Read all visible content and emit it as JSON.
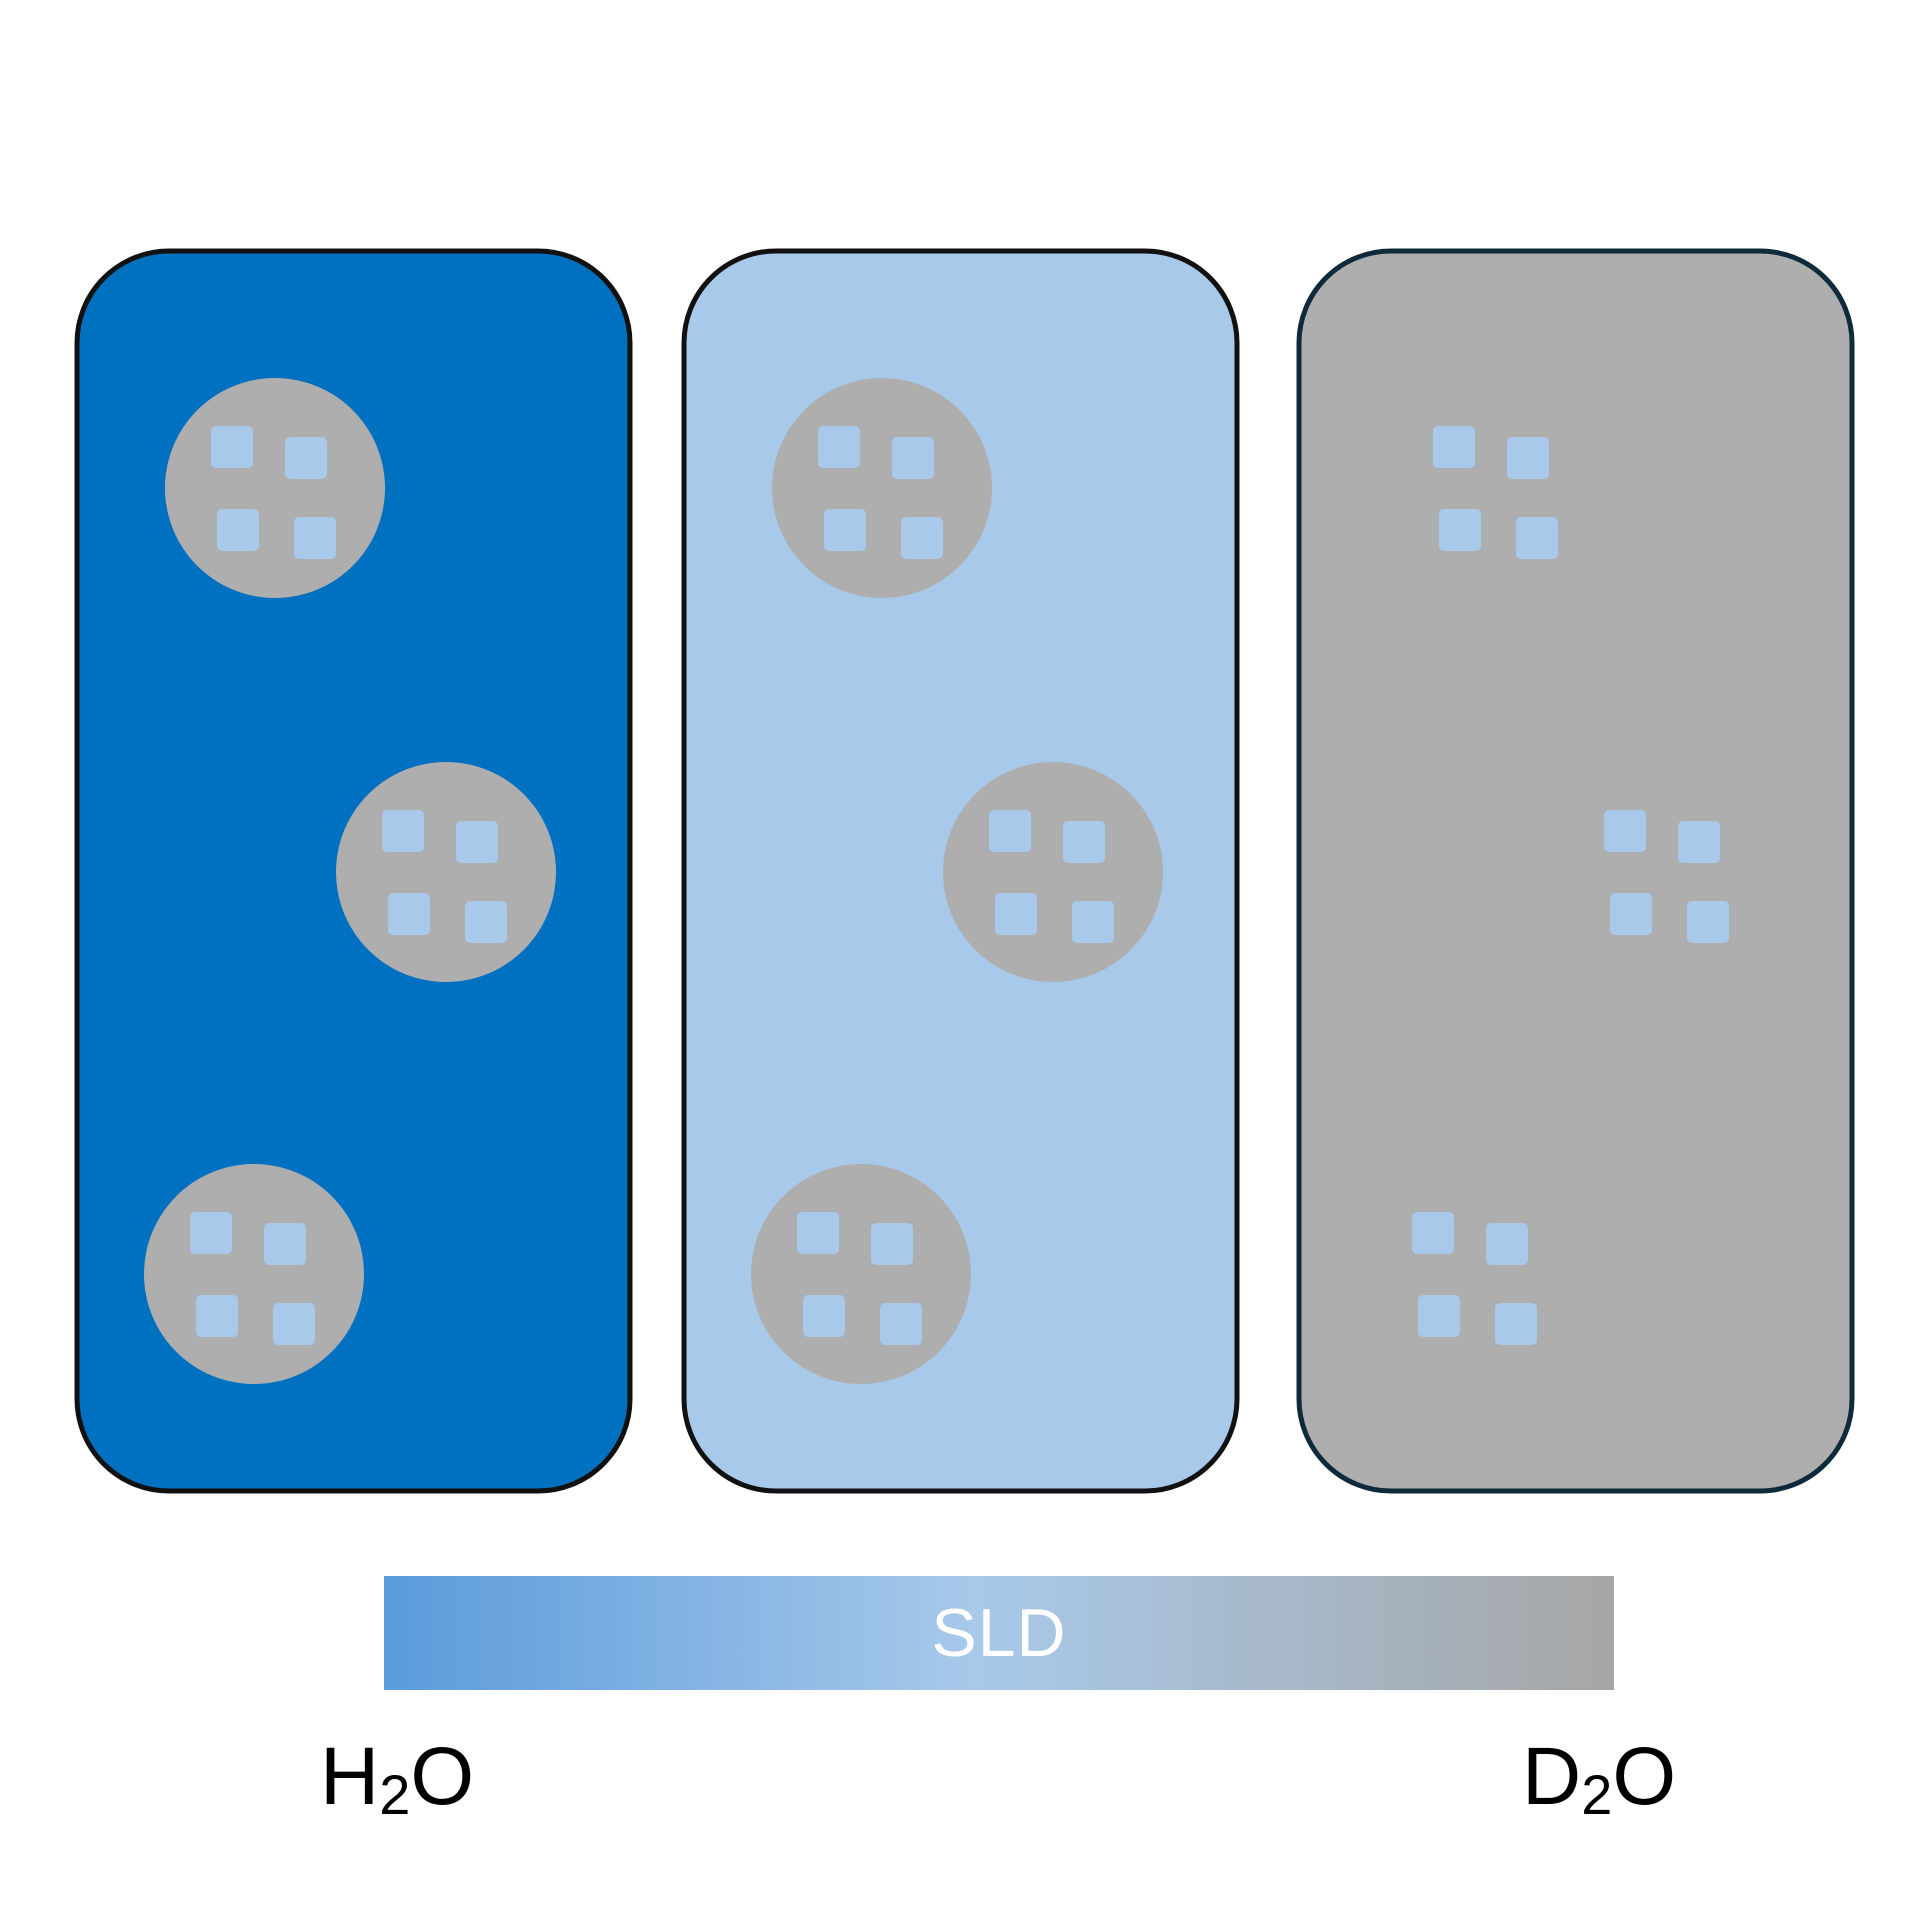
{
  "colors": {
    "h2o_blue": "#0070c0",
    "mix_blue": "#a8c9ea",
    "d2o_grey": "#aeaeae",
    "particle_grey": "#aeaeae",
    "square_blue": "#a8c9ea",
    "gradient_start": "#5a9bdc",
    "gradient_mid": "#a8c9ea",
    "gradient_end": "#a6a6a6",
    "sld_text": "#ffffff"
  },
  "panels": [
    {
      "name": "h2o-panel",
      "fill": "#0070c0",
      "particles_visible": true
    },
    {
      "name": "mixture-panel",
      "fill": "#a8c9ea",
      "particles_visible": true
    },
    {
      "name": "d2o-panel",
      "fill": "#aeaeae",
      "particles_visible": false
    }
  ],
  "sld_bar": {
    "label": "SLD"
  },
  "solvents": {
    "left": {
      "main": "H",
      "sub": "2",
      "tail": "O"
    },
    "right": {
      "main": "D",
      "sub": "2",
      "tail": "O"
    }
  }
}
